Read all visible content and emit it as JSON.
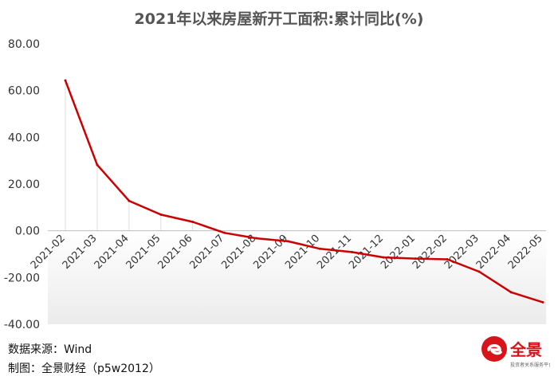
{
  "chart_data": {
    "type": "line",
    "title": "2021年以来房屋新开工面积:累计同比(%)",
    "categories": [
      "2021-02",
      "2021-03",
      "2021-04",
      "2021-05",
      "2021-06",
      "2021-07",
      "2021-08",
      "2021-09",
      "2021-10",
      "2021-11",
      "2021-12",
      "2022-01",
      "2022-02",
      "2022-03",
      "2022-04",
      "2022-05"
    ],
    "series": [
      {
        "values": [
          64.3,
          28.2,
          12.8,
          6.9,
          3.8,
          -0.9,
          -3.2,
          -4.5,
          -7.7,
          -9.1,
          -11.4,
          -11.9,
          -12.2,
          -17.5,
          -26.3,
          -30.6
        ]
      }
    ],
    "ylim": [
      -40,
      80
    ],
    "yticks": [
      "80.00",
      "60.00",
      "40.00",
      "20.00",
      "0.00",
      "-20.00",
      "-40.00"
    ],
    "grid": false,
    "line_color": "#cc0000"
  },
  "notes": {
    "source": "数据来源：Wind",
    "credit": "制图：全景财经（p5w2012）"
  },
  "logo": {
    "name": "全景",
    "tagline": "投资者关系服务平台",
    "color": "#d7141a"
  }
}
